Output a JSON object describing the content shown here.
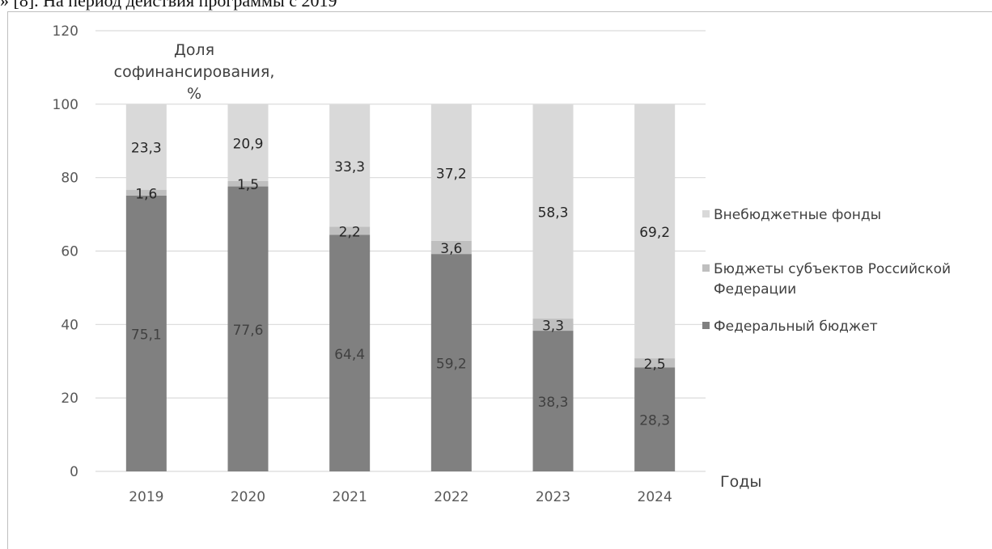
{
  "page": {
    "header_text": "» [8]. На период действия программы с 2019"
  },
  "chart_data": {
    "type": "bar",
    "stacked": true,
    "categories": [
      "2019",
      "2020",
      "2021",
      "2022",
      "2023",
      "2024"
    ],
    "series": [
      {
        "name": "Федеральный бюджет",
        "values": [
          75.1,
          77.6,
          64.4,
          59.2,
          38.3,
          28.3
        ],
        "labels": [
          "75,1",
          "77,6",
          "64,4",
          "59,2",
          "38,3",
          "28,3"
        ],
        "color": "#808080",
        "label_color": "#404040"
      },
      {
        "name": "Бюджеты субъектов Российской Федерации",
        "values": [
          1.6,
          1.5,
          2.2,
          3.6,
          3.3,
          2.5
        ],
        "labels": [
          "1,6",
          "1,5",
          "2,2",
          "3,6",
          "3,3",
          "2,5"
        ],
        "color": "#bfbfbf",
        "label_color": "#262626"
      },
      {
        "name": "Внебюджетные фонды",
        "values": [
          23.3,
          20.9,
          33.3,
          37.2,
          58.3,
          69.2
        ],
        "labels": [
          "23,3",
          "20,9",
          "33,3",
          "37,2",
          "58,3",
          "69,2"
        ],
        "color": "#d9d9d9",
        "label_color": "#262626"
      }
    ],
    "ylabel": "Доля софинансирования, %",
    "ylabel_lines": [
      "Доля",
      "софинансирования,",
      "%"
    ],
    "xlabel": "Годы",
    "ylim": [
      0,
      120
    ],
    "yticks": [
      0,
      20,
      40,
      60,
      80,
      100,
      120
    ],
    "grid": true,
    "legend_position": "right",
    "legend": [
      {
        "lines": [
          "Внебюджетные фонды"
        ],
        "color": "#d9d9d9"
      },
      {
        "lines": [
          "Бюджеты субъектов Российской",
          "Федерации"
        ],
        "color": "#bfbfbf"
      },
      {
        "lines": [
          "Федеральный бюджет"
        ],
        "color": "#808080"
      }
    ],
    "colors": {
      "gridline": "#d9d9d9",
      "tick_text": "#595959",
      "legend_text": "#404040"
    }
  }
}
